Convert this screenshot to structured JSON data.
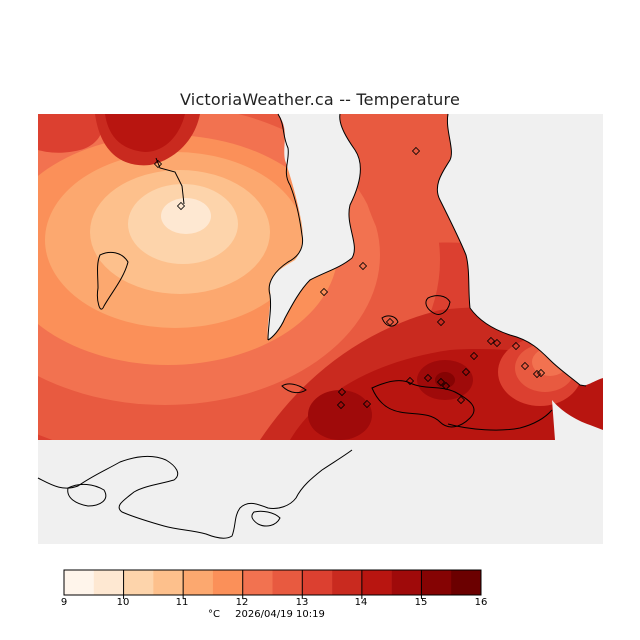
{
  "title": "VictoriaWeather.ca -- Temperature",
  "legend": {
    "ticks": [
      "9",
      "10",
      "11",
      "12",
      "13",
      "14",
      "15",
      "16"
    ],
    "unit": "°C",
    "colors": [
      "#fff5eb",
      "#fee8d2",
      "#fdd4ab",
      "#fdc08c",
      "#fca86f",
      "#fb9059",
      "#f27250",
      "#e85a40",
      "#dc4030",
      "#c92a1f",
      "#b81510",
      "#9f0a0a",
      "#850303",
      "#6b0000"
    ]
  },
  "timestamp": "2026/04/19 10:19",
  "colors": {
    "no_data": "#f0f0f0",
    "coast": "#000000"
  },
  "stations": [
    [
      158,
      164
    ],
    [
      181,
      206
    ],
    [
      416,
      151
    ],
    [
      363,
      266
    ],
    [
      324,
      292
    ],
    [
      390,
      322
    ],
    [
      441,
      322
    ],
    [
      474,
      356
    ],
    [
      491,
      341
    ],
    [
      497,
      343
    ],
    [
      516,
      346
    ],
    [
      525,
      366
    ],
    [
      537,
      374
    ],
    [
      541,
      373
    ],
    [
      342,
      392
    ],
    [
      341,
      405
    ],
    [
      367,
      404
    ],
    [
      410,
      381
    ],
    [
      428,
      378
    ],
    [
      441,
      382
    ],
    [
      446,
      386
    ],
    [
      466,
      372
    ],
    [
      461,
      400
    ]
  ]
}
